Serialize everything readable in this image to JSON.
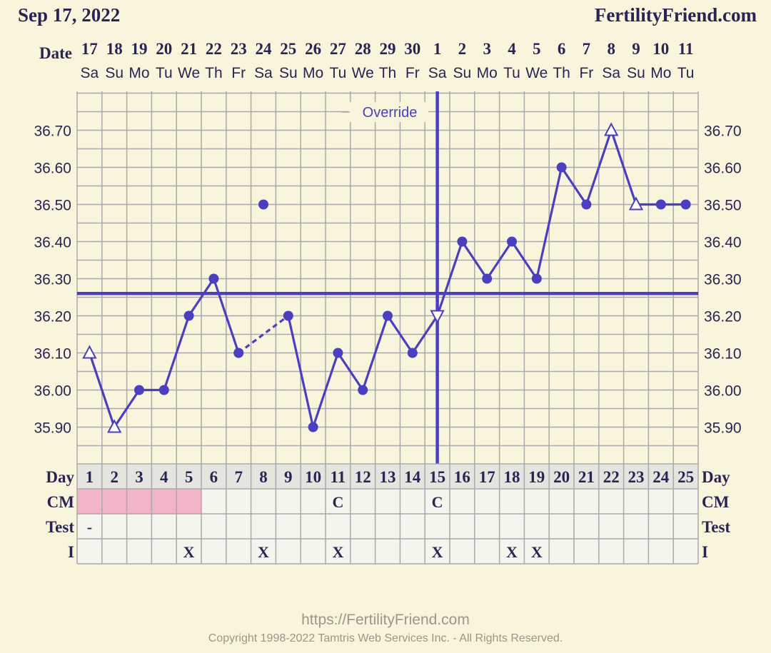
{
  "header": {
    "date": "Sep 17, 2022",
    "site": "FertilityFriend.com"
  },
  "footer": {
    "url": "https://FertilityFriend.com",
    "copyright": "Copyright 1998-2022 Tamtris Web Services Inc. - All Rights Reserved."
  },
  "labels": {
    "date": "Date",
    "day": "Day",
    "cm": "CM",
    "test": "Test",
    "intercourse": "I",
    "override": "Override"
  },
  "colors": {
    "line": "#4a3fbf",
    "grid": "#a9a9a9",
    "background": "#f9f5dc",
    "cm_pink": "#f2b5c8",
    "cell": "#f5f5ee",
    "day_row": "#e6e4df",
    "text": "#2a2455"
  },
  "chart_data": {
    "type": "line",
    "title": "",
    "xlabel": "Day",
    "ylabel": "",
    "ylim": [
      35.8,
      36.8
    ],
    "yticks": [
      "36.70",
      "36.60",
      "36.50",
      "36.40",
      "36.30",
      "36.20",
      "36.10",
      "36.00",
      "35.90"
    ],
    "days": [
      1,
      2,
      3,
      4,
      5,
      6,
      7,
      8,
      9,
      10,
      11,
      12,
      13,
      14,
      15,
      16,
      17,
      18,
      19,
      20,
      21,
      22,
      23,
      24,
      25
    ],
    "dates": [
      "17",
      "18",
      "19",
      "20",
      "21",
      "22",
      "23",
      "24",
      "25",
      "26",
      "27",
      "28",
      "29",
      "30",
      "1",
      "2",
      "3",
      "4",
      "5",
      "6",
      "7",
      "8",
      "9",
      "10",
      "11"
    ],
    "weekdays": [
      "Sa",
      "Su",
      "Mo",
      "Tu",
      "We",
      "Th",
      "Fr",
      "Sa",
      "Su",
      "Mo",
      "Tu",
      "We",
      "Th",
      "Fr",
      "Sa",
      "Su",
      "Mo",
      "Tu",
      "We",
      "Th",
      "Fr",
      "Sa",
      "Su",
      "Mo",
      "Tu"
    ],
    "temperatures": [
      36.1,
      35.9,
      36.0,
      36.0,
      36.2,
      36.3,
      36.1,
      36.5,
      36.2,
      35.9,
      36.1,
      36.0,
      36.2,
      36.1,
      36.2,
      36.4,
      36.3,
      36.4,
      36.3,
      36.6,
      36.5,
      36.7,
      36.5,
      36.5,
      36.5
    ],
    "markers": [
      "triangle",
      "triangle",
      "dot",
      "dot",
      "dot",
      "dot",
      "dot",
      "dot",
      "dot",
      "dot",
      "dot",
      "dot",
      "dot",
      "dot",
      "triangle-down",
      "dot",
      "dot",
      "dot",
      "dot",
      "dot",
      "dot",
      "triangle",
      "triangle",
      "dot",
      "dot"
    ],
    "discarded_days": [
      8
    ],
    "dashed_segment": [
      7,
      9
    ],
    "coverline": 36.26,
    "ovulation_day": 15,
    "cm": [
      "",
      "",
      "",
      "",
      "",
      "",
      "",
      "",
      "",
      "",
      "C",
      "",
      "",
      "",
      "C",
      "",
      "",
      "",
      "",
      "",
      "",
      "",
      "",
      "",
      ""
    ],
    "cm_pink_days": [
      1,
      2,
      3,
      4,
      5
    ],
    "test": [
      "-",
      "",
      "",
      "",
      "",
      "",
      "",
      "",
      "",
      "",
      "",
      "",
      "",
      "",
      "",
      "",
      "",
      "",
      "",
      "",
      "",
      "",
      "",
      "",
      ""
    ],
    "intercourse": [
      "",
      "",
      "",
      "",
      "X",
      "",
      "",
      "X",
      "",
      "",
      "X",
      "",
      "",
      "",
      "X",
      "",
      "",
      "X",
      "X",
      "",
      "",
      "",
      "",
      "",
      ""
    ]
  }
}
